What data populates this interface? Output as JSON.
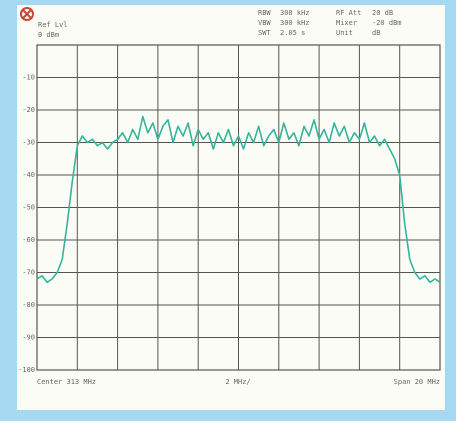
{
  "chart_data": {
    "type": "line",
    "ref_label": "Ref Lvl",
    "ref_value": "0 dBm",
    "settings": [
      [
        "RBW",
        "300 kHz",
        "RF Att",
        "20 dB"
      ],
      [
        "VBW",
        "300 kHz",
        "Mixer",
        "-20 dBm"
      ],
      [
        "SWT",
        "2.05 s",
        "Unit",
        "dB"
      ]
    ],
    "x_left_label": "Center 313 MHz",
    "x_mid_label": "2 MHz/",
    "x_right_label": "Span 20 MHz",
    "xlim": [
      303,
      323
    ],
    "xticks": [
      305,
      307,
      309,
      311,
      313,
      315,
      317,
      319,
      321
    ],
    "ylim": [
      -100,
      0
    ],
    "yticks": [
      -10,
      -20,
      -30,
      -40,
      -50,
      -60,
      -70,
      -80,
      -90,
      -100
    ],
    "grid": true,
    "series": [
      {
        "color": "#35b49c",
        "x": [
          303,
          303.25,
          303.5,
          303.75,
          304,
          304.25,
          304.5,
          304.75,
          305,
          305.25,
          305.5,
          305.75,
          306,
          306.25,
          306.5,
          306.75,
          307,
          307.25,
          307.5,
          307.75,
          308,
          308.25,
          308.5,
          308.75,
          309,
          309.25,
          309.5,
          309.75,
          310,
          310.25,
          310.5,
          310.75,
          311,
          311.25,
          311.5,
          311.75,
          312,
          312.25,
          312.5,
          312.75,
          313,
          313.25,
          313.5,
          313.75,
          314,
          314.25,
          314.5,
          314.75,
          315,
          315.25,
          315.5,
          315.75,
          316,
          316.25,
          316.5,
          316.75,
          317,
          317.25,
          317.5,
          317.75,
          318,
          318.25,
          318.5,
          318.75,
          319,
          319.25,
          319.5,
          319.75,
          320,
          320.25,
          320.5,
          320.75,
          321,
          321.25,
          321.5,
          321.75,
          322,
          322.25,
          322.5,
          322.75,
          323
        ],
        "values": [
          -72,
          -71,
          -73,
          -72,
          -70,
          -66,
          -55,
          -42,
          -31,
          -28,
          -30,
          -29,
          -31,
          -30,
          -32,
          -30,
          -29,
          -27,
          -30,
          -26,
          -29,
          -22,
          -27,
          -24,
          -29,
          -25,
          -23,
          -30,
          -25,
          -28,
          -24,
          -31,
          -26,
          -29,
          -27,
          -32,
          -27,
          -30,
          -26,
          -31,
          -28,
          -32,
          -27,
          -30,
          -25,
          -31,
          -28,
          -26,
          -30,
          -24,
          -29,
          -27,
          -31,
          -25,
          -28,
          -23,
          -29,
          -26,
          -30,
          -24,
          -28,
          -25,
          -30,
          -27,
          -29,
          -24,
          -30,
          -28,
          -31,
          -29,
          -32,
          -35,
          -40,
          -55,
          -66,
          -70,
          -72,
          -71,
          -73,
          -72,
          -73
        ]
      }
    ]
  }
}
